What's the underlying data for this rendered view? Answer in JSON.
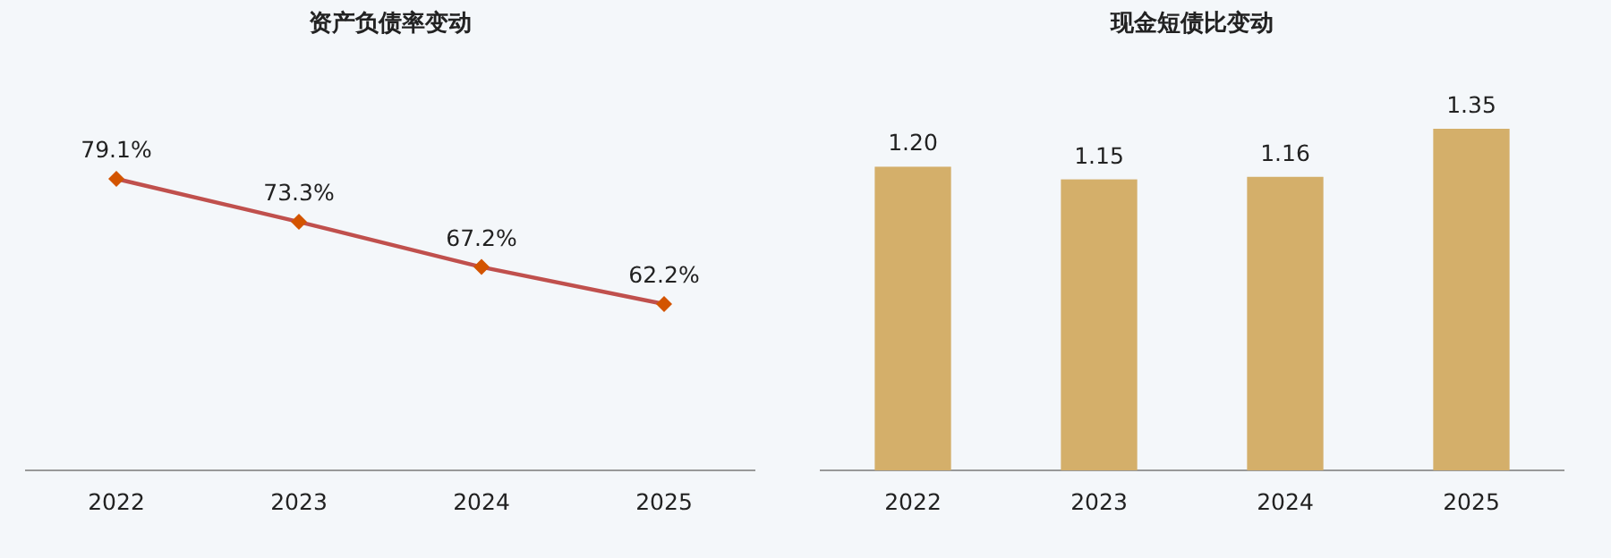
{
  "chart_data": [
    {
      "type": "line",
      "title": "资产负债率变动",
      "categories": [
        "2022",
        "2023",
        "2024",
        "2025"
      ],
      "series": [
        {
          "color": "#c0504d",
          "values": [
            79.1,
            73.3,
            67.2,
            62.2
          ],
          "value_labels": [
            "79.1%",
            "73.3%",
            "67.2%",
            "62.2%"
          ]
        }
      ],
      "marker": "diamond",
      "tick_labels": "x"
    },
    {
      "type": "bar",
      "title": "现金短债比变动",
      "categories": [
        "2022",
        "2023",
        "2024",
        "2025"
      ],
      "series": [
        {
          "color": "#d4af6a",
          "values": [
            1.2,
            1.15,
            1.16,
            1.35
          ],
          "value_labels": [
            "1.20",
            "1.15",
            "1.16",
            "1.35"
          ]
        }
      ],
      "tick_labels": "x"
    }
  ]
}
